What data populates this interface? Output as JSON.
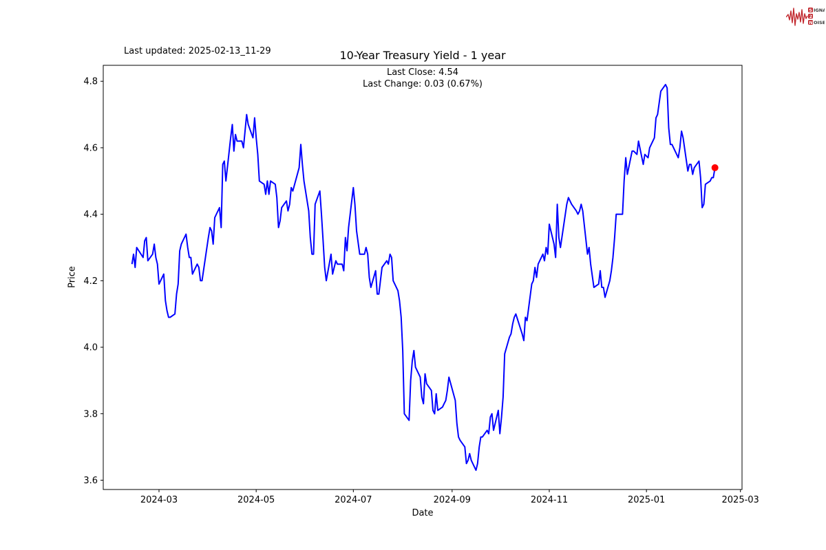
{
  "header": {
    "last_updated": "Last updated: 2025-02-13_11-29",
    "logo": {
      "s": "S",
      "ignal": "IGNAL",
      "two": "2",
      "n": "N",
      "oise": "OISE"
    }
  },
  "chart_data": {
    "type": "line",
    "title": "10-Year Treasury Yield - 1 year",
    "annotations": [
      "Last Close: 4.54",
      "Last Change: 0.03 (0.67%)"
    ],
    "last_close": 4.54,
    "last_change": 0.03,
    "last_change_pct": "0.67%",
    "xlabel": "Date",
    "ylabel": "Price",
    "legend": "none",
    "grid": false,
    "line_color": "#0000ff",
    "marker_color": "#ff0000",
    "x_domain": [
      "2024-01-26",
      "2025-03-02"
    ],
    "y_domain": [
      3.572,
      4.848
    ],
    "x_ticks": [
      {
        "label": "2024-03",
        "date": "2024-03-01"
      },
      {
        "label": "2024-05",
        "date": "2024-05-01"
      },
      {
        "label": "2024-07",
        "date": "2024-07-01"
      },
      {
        "label": "2024-09",
        "date": "2024-09-01"
      },
      {
        "label": "2024-11",
        "date": "2024-11-01"
      },
      {
        "label": "2025-01",
        "date": "2025-01-01"
      },
      {
        "label": "2025-03",
        "date": "2025-03-01"
      }
    ],
    "y_ticks": [
      {
        "label": "3.6",
        "value": 3.6
      },
      {
        "label": "3.8",
        "value": 3.8
      },
      {
        "label": "4.0",
        "value": 4.0
      },
      {
        "label": "4.2",
        "value": 4.2
      },
      {
        "label": "4.4",
        "value": 4.4
      },
      {
        "label": "4.6",
        "value": 4.6
      },
      {
        "label": "4.8",
        "value": 4.8
      }
    ],
    "series": [
      {
        "name": "10-Year Treasury Yield",
        "dates": [
          "2024-02-13",
          "2024-02-14",
          "2024-02-15",
          "2024-02-16",
          "2024-02-20",
          "2024-02-21",
          "2024-02-22",
          "2024-02-23",
          "2024-02-26",
          "2024-02-27",
          "2024-02-28",
          "2024-02-29",
          "2024-03-01",
          "2024-03-04",
          "2024-03-05",
          "2024-03-06",
          "2024-03-07",
          "2024-03-08",
          "2024-03-11",
          "2024-03-12",
          "2024-03-13",
          "2024-03-14",
          "2024-03-15",
          "2024-03-18",
          "2024-03-19",
          "2024-03-20",
          "2024-03-21",
          "2024-03-22",
          "2024-03-25",
          "2024-03-26",
          "2024-03-27",
          "2024-03-28",
          "2024-04-01",
          "2024-04-02",
          "2024-04-03",
          "2024-04-04",
          "2024-04-05",
          "2024-04-08",
          "2024-04-09",
          "2024-04-10",
          "2024-04-11",
          "2024-04-12",
          "2024-04-15",
          "2024-04-16",
          "2024-04-17",
          "2024-04-18",
          "2024-04-19",
          "2024-04-22",
          "2024-04-23",
          "2024-04-24",
          "2024-04-25",
          "2024-04-26",
          "2024-04-29",
          "2024-04-30",
          "2024-05-01",
          "2024-05-02",
          "2024-05-03",
          "2024-05-06",
          "2024-05-07",
          "2024-05-08",
          "2024-05-09",
          "2024-05-10",
          "2024-05-13",
          "2024-05-14",
          "2024-05-15",
          "2024-05-16",
          "2024-05-17",
          "2024-05-20",
          "2024-05-21",
          "2024-05-22",
          "2024-05-23",
          "2024-05-24",
          "2024-05-28",
          "2024-05-29",
          "2024-05-30",
          "2024-05-31",
          "2024-06-03",
          "2024-06-04",
          "2024-06-05",
          "2024-06-06",
          "2024-06-07",
          "2024-06-10",
          "2024-06-11",
          "2024-06-12",
          "2024-06-13",
          "2024-06-14",
          "2024-06-17",
          "2024-06-18",
          "2024-06-20",
          "2024-06-21",
          "2024-06-24",
          "2024-06-25",
          "2024-06-26",
          "2024-06-27",
          "2024-06-28",
          "2024-07-01",
          "2024-07-02",
          "2024-07-03",
          "2024-07-05",
          "2024-07-08",
          "2024-07-09",
          "2024-07-10",
          "2024-07-11",
          "2024-07-12",
          "2024-07-15",
          "2024-07-16",
          "2024-07-17",
          "2024-07-18",
          "2024-07-19",
          "2024-07-22",
          "2024-07-23",
          "2024-07-24",
          "2024-07-25",
          "2024-07-26",
          "2024-07-29",
          "2024-07-30",
          "2024-07-31",
          "2024-08-01",
          "2024-08-02",
          "2024-08-05",
          "2024-08-06",
          "2024-08-07",
          "2024-08-08",
          "2024-08-09",
          "2024-08-12",
          "2024-08-13",
          "2024-08-14",
          "2024-08-15",
          "2024-08-16",
          "2024-08-19",
          "2024-08-20",
          "2024-08-21",
          "2024-08-22",
          "2024-08-23",
          "2024-08-26",
          "2024-08-27",
          "2024-08-28",
          "2024-08-29",
          "2024-08-30",
          "2024-09-03",
          "2024-09-04",
          "2024-09-05",
          "2024-09-06",
          "2024-09-09",
          "2024-09-10",
          "2024-09-11",
          "2024-09-12",
          "2024-09-13",
          "2024-09-16",
          "2024-09-17",
          "2024-09-18",
          "2024-09-19",
          "2024-09-20",
          "2024-09-23",
          "2024-09-24",
          "2024-09-25",
          "2024-09-26",
          "2024-09-27",
          "2024-09-30",
          "2024-10-01",
          "2024-10-02",
          "2024-10-03",
          "2024-10-04",
          "2024-10-07",
          "2024-10-08",
          "2024-10-09",
          "2024-10-10",
          "2024-10-11",
          "2024-10-15",
          "2024-10-16",
          "2024-10-17",
          "2024-10-18",
          "2024-10-21",
          "2024-10-22",
          "2024-10-23",
          "2024-10-24",
          "2024-10-25",
          "2024-10-28",
          "2024-10-29",
          "2024-10-30",
          "2024-10-31",
          "2024-11-01",
          "2024-11-04",
          "2024-11-05",
          "2024-11-06",
          "2024-11-07",
          "2024-11-08",
          "2024-11-12",
          "2024-11-13",
          "2024-11-14",
          "2024-11-15",
          "2024-11-18",
          "2024-11-19",
          "2024-11-20",
          "2024-11-21",
          "2024-11-22",
          "2024-11-25",
          "2024-11-26",
          "2024-11-27",
          "2024-11-29",
          "2024-12-02",
          "2024-12-03",
          "2024-12-04",
          "2024-12-05",
          "2024-12-06",
          "2024-12-09",
          "2024-12-10",
          "2024-12-11",
          "2024-12-12",
          "2024-12-13",
          "2024-12-16",
          "2024-12-17",
          "2024-12-18",
          "2024-12-19",
          "2024-12-20",
          "2024-12-23",
          "2024-12-24",
          "2024-12-26",
          "2024-12-27",
          "2024-12-30",
          "2024-12-31",
          "2025-01-02",
          "2025-01-03",
          "2025-01-06",
          "2025-01-07",
          "2025-01-08",
          "2025-01-10",
          "2025-01-13",
          "2025-01-14",
          "2025-01-15",
          "2025-01-16",
          "2025-01-17",
          "2025-01-21",
          "2025-01-22",
          "2025-01-23",
          "2025-01-24",
          "2025-01-27",
          "2025-01-28",
          "2025-01-29",
          "2025-01-30",
          "2025-01-31",
          "2025-02-03",
          "2025-02-04",
          "2025-02-05",
          "2025-02-06",
          "2025-02-07",
          "2025-02-10",
          "2025-02-11",
          "2025-02-12",
          "2025-02-13"
        ],
        "values": [
          4.25,
          4.28,
          4.24,
          4.3,
          4.27,
          4.32,
          4.33,
          4.26,
          4.28,
          4.31,
          4.27,
          4.25,
          4.19,
          4.22,
          4.14,
          4.11,
          4.09,
          4.09,
          4.1,
          4.16,
          4.19,
          4.29,
          4.31,
          4.34,
          4.3,
          4.27,
          4.27,
          4.22,
          4.25,
          4.24,
          4.2,
          4.2,
          4.33,
          4.36,
          4.35,
          4.31,
          4.39,
          4.42,
          4.36,
          4.55,
          4.56,
          4.5,
          4.63,
          4.67,
          4.59,
          4.64,
          4.62,
          4.62,
          4.6,
          4.65,
          4.7,
          4.67,
          4.63,
          4.69,
          4.63,
          4.58,
          4.5,
          4.49,
          4.46,
          4.5,
          4.46,
          4.5,
          4.49,
          4.45,
          4.36,
          4.38,
          4.42,
          4.44,
          4.41,
          4.43,
          4.48,
          4.47,
          4.54,
          4.61,
          4.55,
          4.5,
          4.41,
          4.33,
          4.28,
          4.28,
          4.43,
          4.47,
          4.4,
          4.32,
          4.24,
          4.2,
          4.28,
          4.22,
          4.26,
          4.25,
          4.25,
          4.23,
          4.33,
          4.29,
          4.36,
          4.48,
          4.43,
          4.35,
          4.28,
          4.28,
          4.3,
          4.28,
          4.21,
          4.18,
          4.23,
          4.16,
          4.16,
          4.2,
          4.24,
          4.26,
          4.25,
          4.28,
          4.27,
          4.2,
          4.17,
          4.14,
          4.09,
          3.99,
          3.8,
          3.78,
          3.9,
          3.96,
          3.99,
          3.94,
          3.91,
          3.85,
          3.83,
          3.92,
          3.89,
          3.87,
          3.81,
          3.8,
          3.86,
          3.81,
          3.82,
          3.83,
          3.84,
          3.87,
          3.91,
          3.84,
          3.77,
          3.73,
          3.72,
          3.7,
          3.65,
          3.66,
          3.68,
          3.66,
          3.63,
          3.65,
          3.7,
          3.73,
          3.73,
          3.75,
          3.74,
          3.79,
          3.8,
          3.75,
          3.81,
          3.74,
          3.79,
          3.85,
          3.98,
          4.03,
          4.04,
          4.07,
          4.09,
          4.1,
          4.04,
          4.02,
          4.09,
          4.08,
          4.19,
          4.2,
          4.24,
          4.21,
          4.25,
          4.28,
          4.26,
          4.3,
          4.28,
          4.37,
          4.31,
          4.27,
          4.43,
          4.33,
          4.3,
          4.43,
          4.45,
          4.44,
          4.43,
          4.41,
          4.4,
          4.41,
          4.43,
          4.41,
          4.28,
          4.3,
          4.25,
          4.18,
          4.19,
          4.23,
          4.18,
          4.18,
          4.15,
          4.2,
          4.23,
          4.27,
          4.33,
          4.4,
          4.4,
          4.4,
          4.5,
          4.57,
          4.52,
          4.59,
          4.59,
          4.58,
          4.62,
          4.55,
          4.58,
          4.57,
          4.6,
          4.63,
          4.69,
          4.7,
          4.77,
          4.79,
          4.78,
          4.66,
          4.61,
          4.61,
          4.57,
          4.6,
          4.65,
          4.63,
          4.53,
          4.55,
          4.55,
          4.52,
          4.54,
          4.56,
          4.51,
          4.42,
          4.43,
          4.49,
          4.5,
          4.51,
          4.51,
          4.54
        ]
      }
    ]
  }
}
